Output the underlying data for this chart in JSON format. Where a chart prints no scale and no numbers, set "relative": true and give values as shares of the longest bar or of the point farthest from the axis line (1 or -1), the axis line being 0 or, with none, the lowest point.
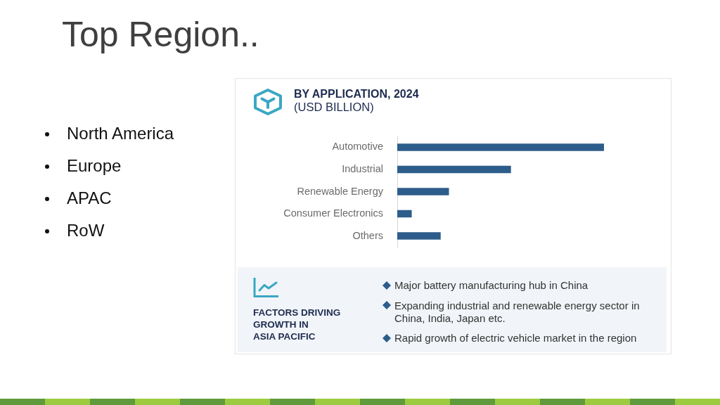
{
  "chart_data": [
    {
      "type": "other",
      "title": "Top Region..",
      "annotations": [
        "North America",
        "Europe",
        "APAC",
        "RoW"
      ]
    },
    {
      "type": "bar",
      "orientation": "horizontal",
      "relative": true,
      "title": "BY APPLICATION, 2024",
      "subtitle": "(USD BILLION)",
      "categories": [
        "Automotive",
        "Industrial",
        "Renewable Energy",
        "Consumer Electronics",
        "Others"
      ],
      "values": [
        1,
        0.55,
        0.25,
        0.07,
        0.21
      ],
      "color": "#2d5d8a"
    },
    {
      "type": "other",
      "title": "FACTORS DRIVING\nGROWTH IN\nASIA PACIFIC",
      "annotations": [
        "Major battery manufacturing hub in China",
        "Expanding industrial and renewable energy sector in China, India, Japan etc.",
        "Rapid growth of electric vehicle market in the region"
      ]
    }
  ]
}
